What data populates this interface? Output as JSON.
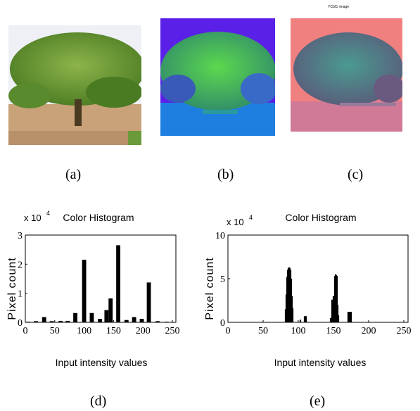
{
  "images": {
    "a": {
      "caption": "(a)",
      "colors": {
        "sky": "#eef0f5",
        "foliage": "#5a8a2e",
        "foliage_light": "#8cb44a",
        "trunk": "#4a3a22",
        "ground": "#c9a27a"
      }
    },
    "b": {
      "caption": "(b)",
      "colors": {
        "sky": "#5a20e8",
        "foliage": "#2fa24a",
        "foliage_light": "#5cd84e",
        "ground": "#1e7fe0",
        "edge": "#3a5ab8"
      }
    },
    "c": {
      "caption": "(c)",
      "title": "YCbCr image",
      "colors": {
        "sky": "#f08080",
        "foliage": "#5a5a7a",
        "foliage_teal": "#4a9a90",
        "ground": "#d07a98"
      }
    }
  },
  "charts": [
    {
      "caption": "(d)"
    },
    {
      "caption": "(e)"
    }
  ],
  "chart_data": [
    {
      "type": "bar",
      "title": "Color Histogram",
      "xlabel": "Input intensity values",
      "ylabel": "Pixel count",
      "y_multiplier": "x 10",
      "y_exponent": "4",
      "xlim": [
        0,
        256
      ],
      "ylim": [
        0,
        3
      ],
      "xticks": [
        0,
        50,
        100,
        150,
        200,
        250
      ],
      "yticks": [
        0,
        1,
        2,
        3
      ],
      "bar_width": 7,
      "bars": [
        {
          "x": 5,
          "y": 0.02
        },
        {
          "x": 18,
          "y": 0.04
        },
        {
          "x": 32,
          "y": 0.18
        },
        {
          "x": 45,
          "y": 0.04
        },
        {
          "x": 60,
          "y": 0.05
        },
        {
          "x": 72,
          "y": 0.05
        },
        {
          "x": 85,
          "y": 0.32
        },
        {
          "x": 100,
          "y": 2.15
        },
        {
          "x": 113,
          "y": 0.32
        },
        {
          "x": 127,
          "y": 0.12
        },
        {
          "x": 138,
          "y": 0.42
        },
        {
          "x": 145,
          "y": 0.82
        },
        {
          "x": 158,
          "y": 2.65
        },
        {
          "x": 172,
          "y": 0.08
        },
        {
          "x": 185,
          "y": 0.18
        },
        {
          "x": 198,
          "y": 0.12
        },
        {
          "x": 210,
          "y": 1.37
        },
        {
          "x": 225,
          "y": 0.04
        },
        {
          "x": 240,
          "y": 0.02
        }
      ],
      "color": "#000000"
    },
    {
      "type": "bar",
      "title": "Color Histogram",
      "xlabel": "Input intensity values",
      "ylabel": "Pixel count",
      "y_multiplier": "x 10",
      "y_exponent": "4",
      "xlim": [
        0,
        256
      ],
      "ylim": [
        0,
        10
      ],
      "xticks": [
        0,
        50,
        100,
        150,
        200,
        250
      ],
      "yticks": [
        0,
        5,
        10
      ],
      "bar_width": 2.2,
      "bars": [
        {
          "x": 82,
          "y": 1.5
        },
        {
          "x": 83,
          "y": 3.2
        },
        {
          "x": 84,
          "y": 5.2
        },
        {
          "x": 85,
          "y": 6.0
        },
        {
          "x": 86,
          "y": 6.2
        },
        {
          "x": 87,
          "y": 6.3
        },
        {
          "x": 88,
          "y": 6.2
        },
        {
          "x": 89,
          "y": 6.0
        },
        {
          "x": 90,
          "y": 5.0
        },
        {
          "x": 91,
          "y": 3.0
        },
        {
          "x": 92,
          "y": 1.6
        },
        {
          "x": 103,
          "y": 0.3
        },
        {
          "x": 109,
          "y": 0.7
        },
        {
          "x": 110,
          "y": 0.7
        },
        {
          "x": 111,
          "y": 0.7
        },
        {
          "x": 146,
          "y": 0.5
        },
        {
          "x": 148,
          "y": 2.6
        },
        {
          "x": 150,
          "y": 3.0
        },
        {
          "x": 152,
          "y": 5.3
        },
        {
          "x": 153,
          "y": 5.5
        },
        {
          "x": 154,
          "y": 5.4
        },
        {
          "x": 155,
          "y": 5.3
        },
        {
          "x": 156,
          "y": 2.0
        },
        {
          "x": 157,
          "y": 0.8
        },
        {
          "x": 171,
          "y": 1.2
        },
        {
          "x": 173,
          "y": 1.2
        },
        {
          "x": 175,
          "y": 1.2
        }
      ],
      "color": "#000000"
    }
  ]
}
